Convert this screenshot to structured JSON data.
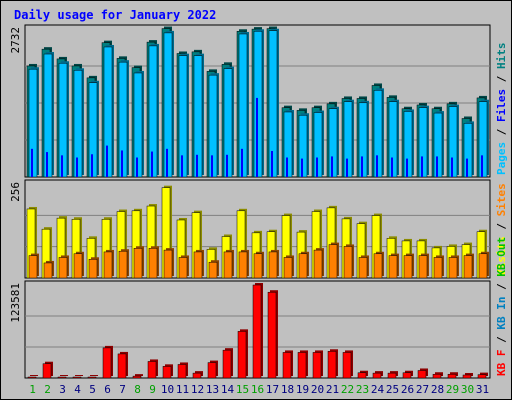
{
  "chart_data": {
    "type": "bar",
    "title": "Daily usage for January 2022",
    "categories": [
      "1",
      "2",
      "3",
      "4",
      "5",
      "6",
      "7",
      "8",
      "9",
      "10",
      "11",
      "12",
      "13",
      "14",
      "15",
      "16",
      "17",
      "18",
      "19",
      "20",
      "21",
      "22",
      "23",
      "24",
      "25",
      "26",
      "27",
      "28",
      "29",
      "30",
      "31"
    ],
    "weekend_days": [
      "1",
      "2",
      "8",
      "9",
      "15",
      "16",
      "22",
      "23",
      "29",
      "30"
    ],
    "colors": {
      "hits": "#008080",
      "files": "#0000ff",
      "pages": "#00c0ff",
      "visits": "#ffff00",
      "sites": "#ff8000",
      "kb_f": "#ff0000",
      "kb_in": "#0080c0",
      "kb_out": "#00c000",
      "grid": "#808080",
      "weekday_label": "#000080",
      "weekend_label": "#00a000"
    },
    "panels": [
      {
        "name": "hits-files-pages",
        "ymax_label": "2732",
        "ymax": 2732,
        "legend": [
          {
            "text": "Pages",
            "color": "#00c0ff"
          },
          {
            "text": "Files",
            "color": "#0000ff"
          },
          {
            "text": "Hits",
            "color": "#008080"
          }
        ],
        "series": [
          {
            "name": "Hits",
            "values": [
              2050,
              2360,
              2180,
              2050,
              1830,
              2480,
              2190,
              2020,
              2490,
              2740,
              2280,
              2310,
              1950,
              2080,
              2690,
              2730,
              2740,
              1280,
              1230,
              1280,
              1350,
              1450,
              1450,
              1690,
              1470,
              1260,
              1330,
              1260,
              1350,
              1080,
              1460
            ]
          },
          {
            "name": "Pages",
            "values": [
              1990,
              2270,
              2100,
              1970,
              1740,
              2400,
              2120,
              1920,
              2420,
              2660,
              2240,
              2240,
              1880,
              2000,
              2640,
              2690,
              2700,
              1200,
              1140,
              1190,
              1260,
              1390,
              1370,
              1600,
              1390,
              1210,
              1280,
              1180,
              1300,
              990,
              1390
            ]
          },
          {
            "name": "Files",
            "values": [
              520,
              460,
              400,
              360,
              420,
              580,
              490,
              360,
              470,
              520,
              400,
              410,
              400,
              410,
              520,
              1460,
              480,
              360,
              340,
              360,
              380,
              340,
              380,
              400,
              360,
              340,
              380,
              380,
              360,
              340,
              400
            ]
          }
        ]
      },
      {
        "name": "visits-sites",
        "ymax_label": "256",
        "ymax": 256,
        "legend": [
          {
            "text": "Visits",
            "color": "#ffff00"
          },
          {
            "text": "Sites",
            "color": "#ff8000"
          }
        ],
        "series": [
          {
            "name": "Visits",
            "values": [
              188,
              133,
              163,
              160,
              108,
              160,
              181,
              183,
              196,
              246,
              158,
              178,
              78,
              113,
              183,
              123,
              126,
              170,
              125,
              181,
              191,
              161,
              148,
              170,
              108,
              101,
              101,
              82,
              86,
              91,
              126
            ]
          },
          {
            "name": "Sites",
            "values": [
              61,
              41,
              56,
              66,
              51,
              71,
              73,
              81,
              81,
              76,
              56,
              71,
              43,
              71,
              71,
              66,
              71,
              56,
              66,
              76,
              91,
              86,
              56,
              66,
              61,
              61,
              61,
              56,
              56,
              61,
              66
            ]
          }
        ]
      },
      {
        "name": "kbytes",
        "ymax_label": "123581",
        "ymax": 123581,
        "legend": [
          {
            "text": "KB F",
            "color": "#ff0000"
          },
          {
            "text": "KB In",
            "color": "#0080c0"
          },
          {
            "text": "KB Out",
            "color": "#00c000"
          }
        ],
        "series": [
          {
            "name": "KB F",
            "values": [
              1300,
              19000,
              1300,
              1300,
              1300,
              40000,
              32000,
              2500,
              22000,
              15500,
              18000,
              6500,
              20500,
              37000,
              62000,
              123581,
              114000,
              34000,
              34000,
              34000,
              35500,
              34000,
              7000,
              6500,
              6500,
              7000,
              10000,
              5000,
              5000,
              4000,
              4500
            ]
          }
        ]
      }
    ]
  }
}
